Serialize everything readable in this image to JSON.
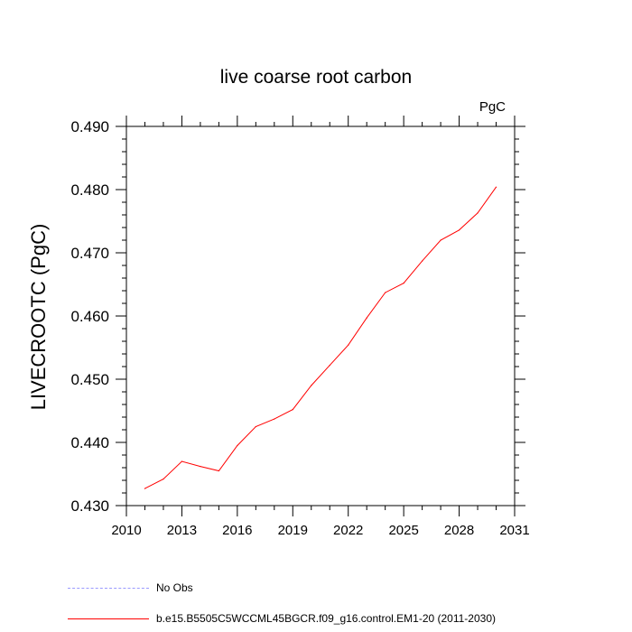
{
  "chart_data": {
    "type": "line",
    "title": "live coarse root carbon",
    "units_label": "PgC",
    "ylabel": "LIVECROOTC  (PgC)",
    "xlabel": "",
    "xlim": [
      2010,
      2031
    ],
    "ylim": [
      0.43,
      0.49
    ],
    "x_ticks": [
      2010,
      2013,
      2016,
      2019,
      2022,
      2025,
      2028,
      2031
    ],
    "x_tick_labels": [
      "2010",
      "2013",
      "2016",
      "2019",
      "2022",
      "2025",
      "2028",
      "2031"
    ],
    "y_ticks": [
      0.43,
      0.44,
      0.45,
      0.46,
      0.47,
      0.48,
      0.49
    ],
    "y_tick_labels": [
      "0.430",
      "0.440",
      "0.450",
      "0.460",
      "0.470",
      "0.480",
      "0.490"
    ],
    "series": [
      {
        "name": "b.e15.B5505C5WCCML45BGCR.f09_g16.control.EM1-20 (2011-2030)",
        "color": "#ff0000",
        "style": "solid",
        "x": [
          2011,
          2012,
          2013,
          2014,
          2015,
          2016,
          2017,
          2018,
          2019,
          2020,
          2021,
          2022,
          2023,
          2024,
          2025,
          2026,
          2027,
          2028,
          2029,
          2030
        ],
        "values": [
          0.4327,
          0.4342,
          0.437,
          0.4362,
          0.4355,
          0.4395,
          0.4425,
          0.4437,
          0.4452,
          0.449,
          0.4522,
          0.4554,
          0.4597,
          0.4637,
          0.4652,
          0.4687,
          0.472,
          0.4736,
          0.4763,
          0.4804
        ]
      },
      {
        "name": "No Obs",
        "color": "#9999ff",
        "style": "dashed",
        "x": [],
        "values": []
      }
    ]
  }
}
